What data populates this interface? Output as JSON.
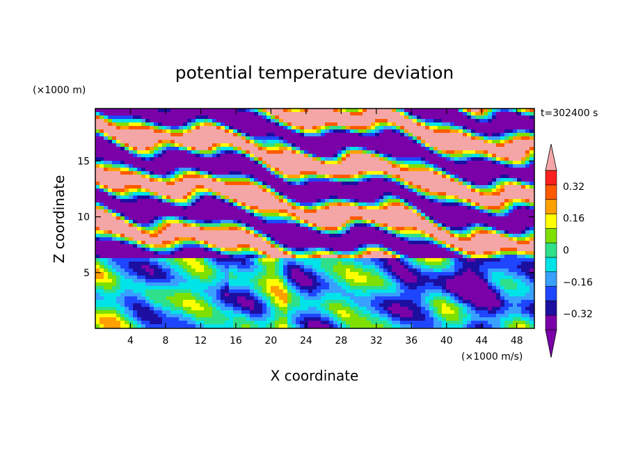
{
  "chart_data": {
    "type": "heatmap",
    "title": "potential temperature deviation",
    "xlabel": "X coordinate",
    "ylabel": "Z coordinate",
    "x_unit": "(×1000 m/s)",
    "y_unit": "(×1000 m)",
    "time_label": "t=302400 s",
    "xlim": [
      0,
      50
    ],
    "ylim": [
      0,
      19.7
    ],
    "x_ticks": [
      4,
      8,
      12,
      16,
      20,
      24,
      28,
      32,
      36,
      40,
      44,
      48
    ],
    "y_ticks": [
      5,
      10,
      15
    ],
    "colorbar": {
      "levels": [
        -0.4,
        -0.32,
        -0.24,
        -0.16,
        -0.08,
        0,
        0.08,
        0.16,
        0.24,
        0.32,
        0.4
      ],
      "tick_labels": [
        "0.32",
        "0.16",
        "0",
        "−0.16",
        "−0.32"
      ],
      "tick_values": [
        0.32,
        0.16,
        0,
        -0.16,
        -0.32
      ],
      "over_color": "#f4a6a6",
      "under_color": "#7a00a8",
      "colors": [
        "#7a00a8",
        "#1c0fa0",
        "#1f46ff",
        "#3aa0ff",
        "#00e3e8",
        "#2ee08a",
        "#7ee000",
        "#ffff00",
        "#ffa000",
        "#ff5a00",
        "#ff2020"
      ]
    }
  }
}
